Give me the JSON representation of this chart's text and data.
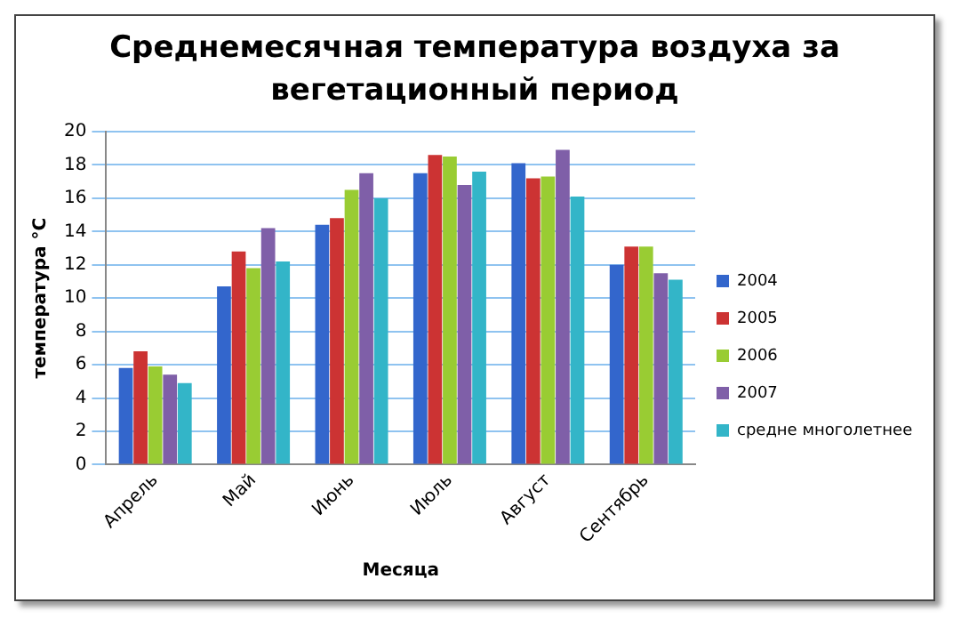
{
  "chart_data": {
    "type": "bar",
    "title": "Среднемесячная температура воздуха за вегетационный период",
    "xlabel": "Месяца",
    "ylabel": "температура °С",
    "categories": [
      "Апрель",
      "Май",
      "Июнь",
      "Июль",
      "Август",
      "Сентябрь"
    ],
    "series": [
      {
        "name": "2004",
        "color": "#3366cc",
        "values": [
          5.8,
          10.7,
          14.4,
          17.5,
          18.1,
          12.0
        ]
      },
      {
        "name": "2005",
        "color": "#cc3333",
        "values": [
          6.8,
          12.8,
          14.8,
          18.6,
          17.2,
          13.1
        ]
      },
      {
        "name": "2006",
        "color": "#99cc33",
        "values": [
          5.9,
          11.8,
          16.5,
          18.5,
          17.3,
          13.1
        ]
      },
      {
        "name": "2007",
        "color": "#7f5fa8",
        "values": [
          5.4,
          14.2,
          17.5,
          16.8,
          18.9,
          11.5
        ]
      },
      {
        "name": "средне многолетнее",
        "color": "#33b5c8",
        "values": [
          4.9,
          12.2,
          16.0,
          17.6,
          16.1,
          11.1
        ]
      }
    ],
    "ylim": [
      0,
      20
    ],
    "yticks": [
      0,
      2,
      4,
      6,
      8,
      10,
      12,
      14,
      16,
      18,
      20
    ],
    "grid": "y",
    "legend": "right"
  }
}
